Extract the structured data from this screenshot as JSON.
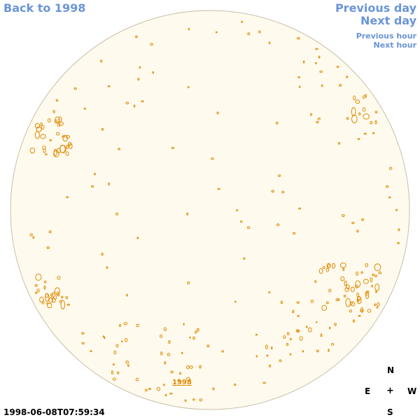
{
  "nav": {
    "back": "Back to 1998",
    "previous_day": "Previous day",
    "next_day": "Next day",
    "previous_hour": "Previous hour",
    "next_hour": "Next hour"
  },
  "compass": {
    "n": "N",
    "e": "E",
    "w": "W",
    "s": "S",
    "center": "+"
  },
  "timestamp": "1998-06-08T07:59:34",
  "year_label": "1998",
  "colors": {
    "disk_fill": "#fefaee",
    "disk_stroke": "#c9bfa8",
    "contour": "#e08a00",
    "link": "#6a95d8"
  }
}
